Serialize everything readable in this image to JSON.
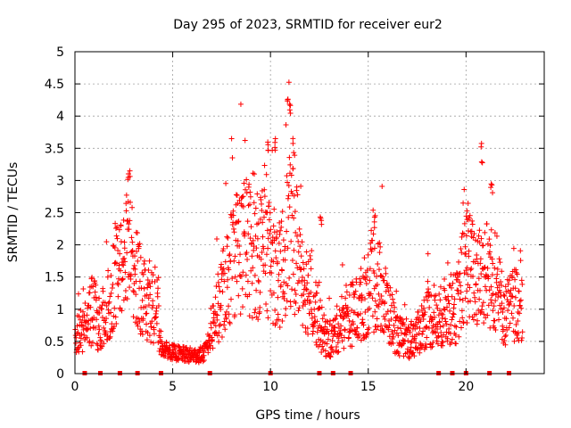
{
  "chart_data": {
    "type": "scatter",
    "title": "Day 295 of 2023, SRMTID for receiver eur2",
    "xlabel": "GPS time / hours",
    "ylabel": "SRMTID / TECUs",
    "xlim": [
      0,
      24
    ],
    "ylim": [
      0,
      5
    ],
    "xticks": [
      "0",
      "5",
      "10",
      "15",
      "20"
    ],
    "yticks": [
      "0",
      "0.5",
      "1",
      "1.5",
      "2",
      "2.5",
      "3",
      "3.5",
      "4",
      "4.5",
      "5"
    ],
    "grid": true,
    "marker": "plus",
    "color": "#ff0000",
    "series": [
      {
        "name": "SRMTID",
        "profile": [
          [
            0.0,
            0.55
          ],
          [
            0.5,
            0.7
          ],
          [
            0.9,
            1.0
          ],
          [
            1.2,
            0.8
          ],
          [
            1.6,
            1.0
          ],
          [
            2.0,
            1.5
          ],
          [
            2.4,
            1.6
          ],
          [
            2.7,
            1.9
          ],
          [
            3.0,
            1.6
          ],
          [
            3.4,
            1.3
          ],
          [
            3.8,
            1.1
          ],
          [
            4.2,
            1.0
          ],
          [
            4.4,
            0.4
          ],
          [
            5.0,
            0.33
          ],
          [
            5.5,
            0.3
          ],
          [
            6.0,
            0.28
          ],
          [
            6.6,
            0.3
          ],
          [
            6.9,
            0.6
          ],
          [
            7.3,
            1.0
          ],
          [
            7.8,
            1.5
          ],
          [
            8.3,
            1.9
          ],
          [
            8.8,
            2.0
          ],
          [
            9.3,
            1.8
          ],
          [
            9.7,
            2.1
          ],
          [
            10.1,
            1.7
          ],
          [
            10.5,
            1.5
          ],
          [
            10.9,
            2.2
          ],
          [
            11.3,
            2.0
          ],
          [
            11.8,
            1.4
          ],
          [
            12.3,
            1.0
          ],
          [
            12.7,
            0.6
          ],
          [
            13.1,
            0.5
          ],
          [
            13.6,
            0.8
          ],
          [
            14.0,
            0.9
          ],
          [
            14.5,
            1.0
          ],
          [
            15.0,
            1.3
          ],
          [
            15.5,
            1.4
          ],
          [
            16.0,
            1.0
          ],
          [
            16.5,
            0.6
          ],
          [
            17.0,
            0.5
          ],
          [
            17.5,
            0.6
          ],
          [
            18.0,
            0.9
          ],
          [
            18.5,
            0.8
          ],
          [
            19.0,
            1.0
          ],
          [
            19.5,
            1.0
          ],
          [
            20.0,
            1.7
          ],
          [
            20.5,
            1.5
          ],
          [
            21.0,
            1.6
          ],
          [
            21.5,
            1.4
          ],
          [
            22.0,
            0.9
          ],
          [
            22.5,
            1.1
          ],
          [
            22.9,
            1.1
          ]
        ]
      }
    ],
    "peaks": [
      [
        2.75,
        3.25
      ],
      [
        9.9,
        3.8
      ],
      [
        10.2,
        3.7
      ],
      [
        10.9,
        4.55
      ],
      [
        11.0,
        4.3
      ],
      [
        11.2,
        3.7
      ],
      [
        12.55,
        2.6
      ],
      [
        15.3,
        2.5
      ],
      [
        20.1,
        2.7
      ],
      [
        20.8,
        3.6
      ],
      [
        21.3,
        3.1
      ]
    ],
    "gap_markers": [
      0.5,
      1.3,
      2.3,
      3.2,
      4.4,
      6.9,
      10.0,
      12.5,
      13.2,
      14.1,
      18.6,
      19.3,
      20.0,
      21.2,
      22.2
    ]
  }
}
